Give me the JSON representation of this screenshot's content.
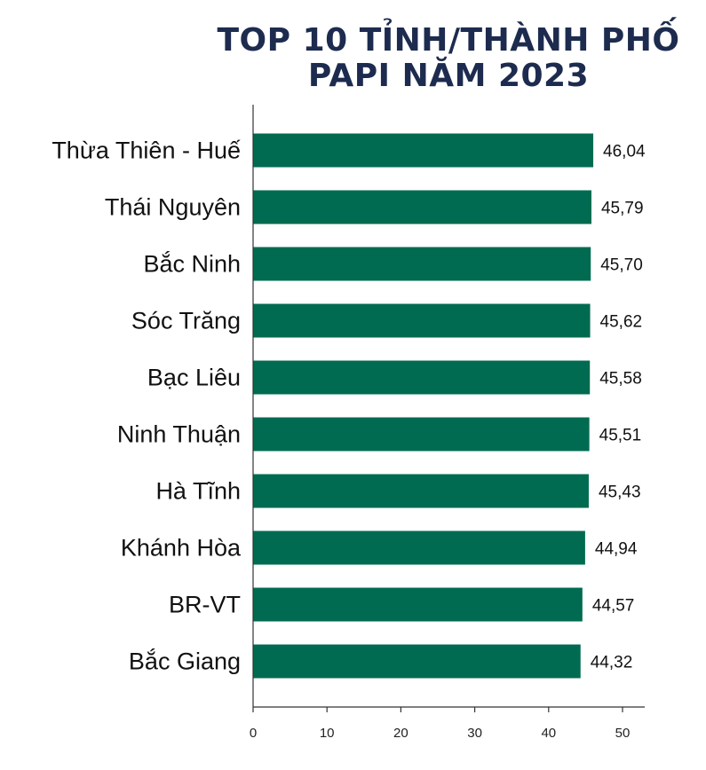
{
  "chart_data": {
    "type": "bar",
    "orientation": "horizontal",
    "title_lines": [
      "TOP 10 TỈNH/THÀNH PHỐ",
      "PAPI NĂM 2023"
    ],
    "categories": [
      "Thừa Thiên - Huế",
      "Thái Nguyên",
      "Bắc Ninh",
      "Sóc Trăng",
      "Bạc Liêu",
      "Ninh Thuận",
      "Hà Tĩnh",
      "Khánh Hòa",
      "BR-VT",
      "Bắc Giang"
    ],
    "values": [
      46.04,
      45.79,
      45.7,
      45.62,
      45.58,
      45.51,
      45.43,
      44.94,
      44.57,
      44.32
    ],
    "value_labels": [
      "46,04",
      "45,79",
      "45,70",
      "45,62",
      "45,58",
      "45,51",
      "45,43",
      "44,94",
      "44,57",
      "44,32"
    ],
    "xlim": [
      0,
      53
    ],
    "xticks": [
      0,
      10,
      20,
      30,
      40,
      50
    ],
    "xlabel": "",
    "ylabel": "",
    "grid": false,
    "bar_color": "#006b50",
    "axis_color": "#333333"
  }
}
